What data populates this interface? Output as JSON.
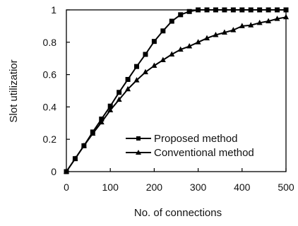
{
  "chart_data": {
    "type": "line",
    "xlabel": "No. of connections",
    "ylabel": "Slot utilizatior",
    "xlim": [
      0,
      500
    ],
    "ylim": [
      0,
      1
    ],
    "xticks": [
      "0",
      "100",
      "200",
      "300",
      "400",
      "500"
    ],
    "yticks": [
      "0",
      "0.2",
      "0.4",
      "0.6",
      "0.8",
      "1"
    ],
    "grid": false,
    "legend_position": "bottom-right",
    "x": [
      0,
      20,
      40,
      60,
      80,
      100,
      120,
      140,
      160,
      180,
      200,
      220,
      240,
      260,
      280,
      300,
      320,
      340,
      360,
      380,
      400,
      420,
      440,
      460,
      480,
      500
    ],
    "series": [
      {
        "name": "Proposed method",
        "marker": "square",
        "color": "#000000",
        "values": [
          0.0,
          0.08,
          0.16,
          0.245,
          0.325,
          0.405,
          0.49,
          0.57,
          0.65,
          0.725,
          0.805,
          0.87,
          0.93,
          0.97,
          0.99,
          1.0,
          1.0,
          1.0,
          1.0,
          1.0,
          1.0,
          1.0,
          1.0,
          1.0,
          1.0,
          1.0
        ]
      },
      {
        "name": "Conventional method",
        "marker": "triangle",
        "color": "#000000",
        "values": [
          0.0,
          0.08,
          0.16,
          0.235,
          0.305,
          0.38,
          0.445,
          0.51,
          0.565,
          0.615,
          0.655,
          0.69,
          0.725,
          0.755,
          0.775,
          0.8,
          0.825,
          0.845,
          0.86,
          0.875,
          0.9,
          0.905,
          0.92,
          0.93,
          0.945,
          0.955
        ]
      }
    ]
  }
}
